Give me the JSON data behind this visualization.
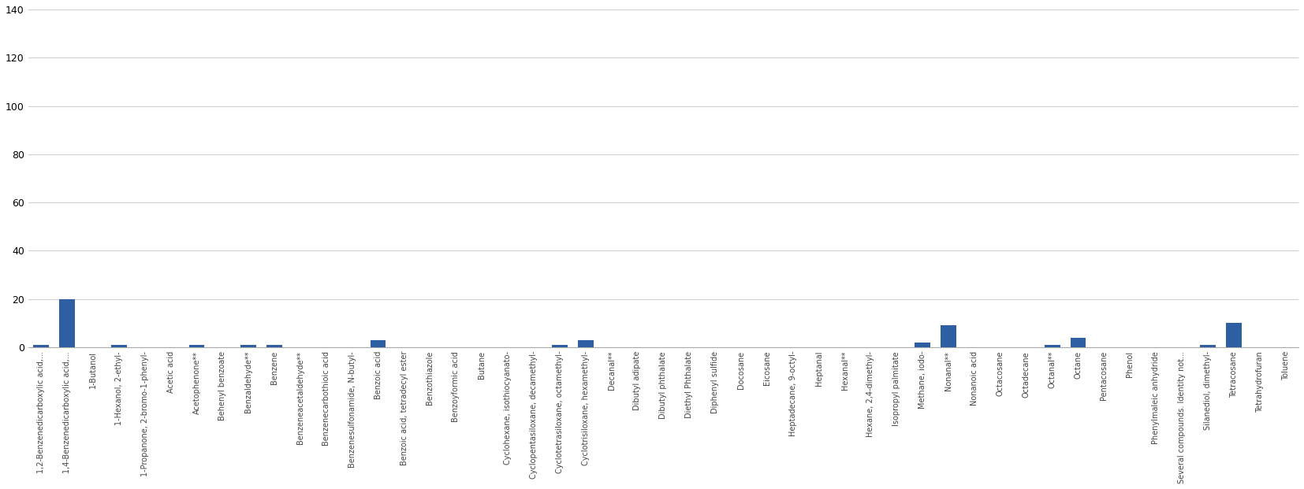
{
  "categories": [
    "1,2-Benzenedicarboxylic acid,...",
    "1,4-Benzenedicarboxylic acid,...",
    "1-Butanol",
    "1-Hexanol, 2-ethyl-",
    "1-Propanone, 2-bromo-1-phenyl-",
    "Acetic acid",
    "Acetophenone**",
    "Behenyl benzoate",
    "Benzaldehyde**",
    "Benzene",
    "Benzeneacetaldehyde**",
    "Benzenecarbothioic acid",
    "Benzenesulfonamide, N-butyl-",
    "Benzoic acid",
    "Benzoic acid, tetradecyl ester",
    "Benzothiazole",
    "Benzoyformic acid",
    "Butane",
    "Cyclohexane, isothiocyanato-",
    "Cyclopentasiloxane, decamethyl-",
    "Cyclotetrasiloxane, octamethyl-",
    "Cyclotrisiloxane, hexamethyl-",
    "Decanal**",
    "Dibutyl adipate",
    "Dibutyl phthalate",
    "Diethyl Phthalate",
    "Diphenyl sulfide",
    "Docosane",
    "Eicosane",
    "Heptadecane, 9-octyl-",
    "Heptanal",
    "Hexanal**",
    "Hexane, 2,4-dimethyl-",
    "Isopropyl palmitate",
    "Methane, iodo-",
    "Nonanal**",
    "Nonanoic acid",
    "Octacosane",
    "Octadecane",
    "Octanal**",
    "Octane",
    "Pentacosane",
    "Phenol",
    "Phenylmaleic anhydride",
    "Several compounds. Identity not...",
    "Silanediol, dimethyl-",
    "Tetracosane",
    "Tetrahydrofuran",
    "Toluene"
  ],
  "values": [
    1,
    20,
    0,
    1,
    0,
    0,
    1,
    0,
    1,
    1,
    0,
    0,
    0,
    3,
    0,
    0,
    0,
    0,
    0,
    0,
    1,
    3,
    0,
    0,
    0,
    0,
    0,
    0,
    0,
    0,
    0,
    0,
    0,
    0,
    2,
    9,
    0,
    0,
    0,
    1,
    4,
    0,
    0,
    0,
    0,
    1,
    10,
    0,
    0
  ],
  "bar_color": "#2e5fa3",
  "ylim": [
    0,
    140
  ],
  "yticks": [
    0,
    20,
    40,
    60,
    80,
    100,
    120,
    140
  ],
  "background_color": "#ffffff",
  "grid_color": "#d0d0d0",
  "label_fontsize": 7,
  "tick_fontsize": 9
}
